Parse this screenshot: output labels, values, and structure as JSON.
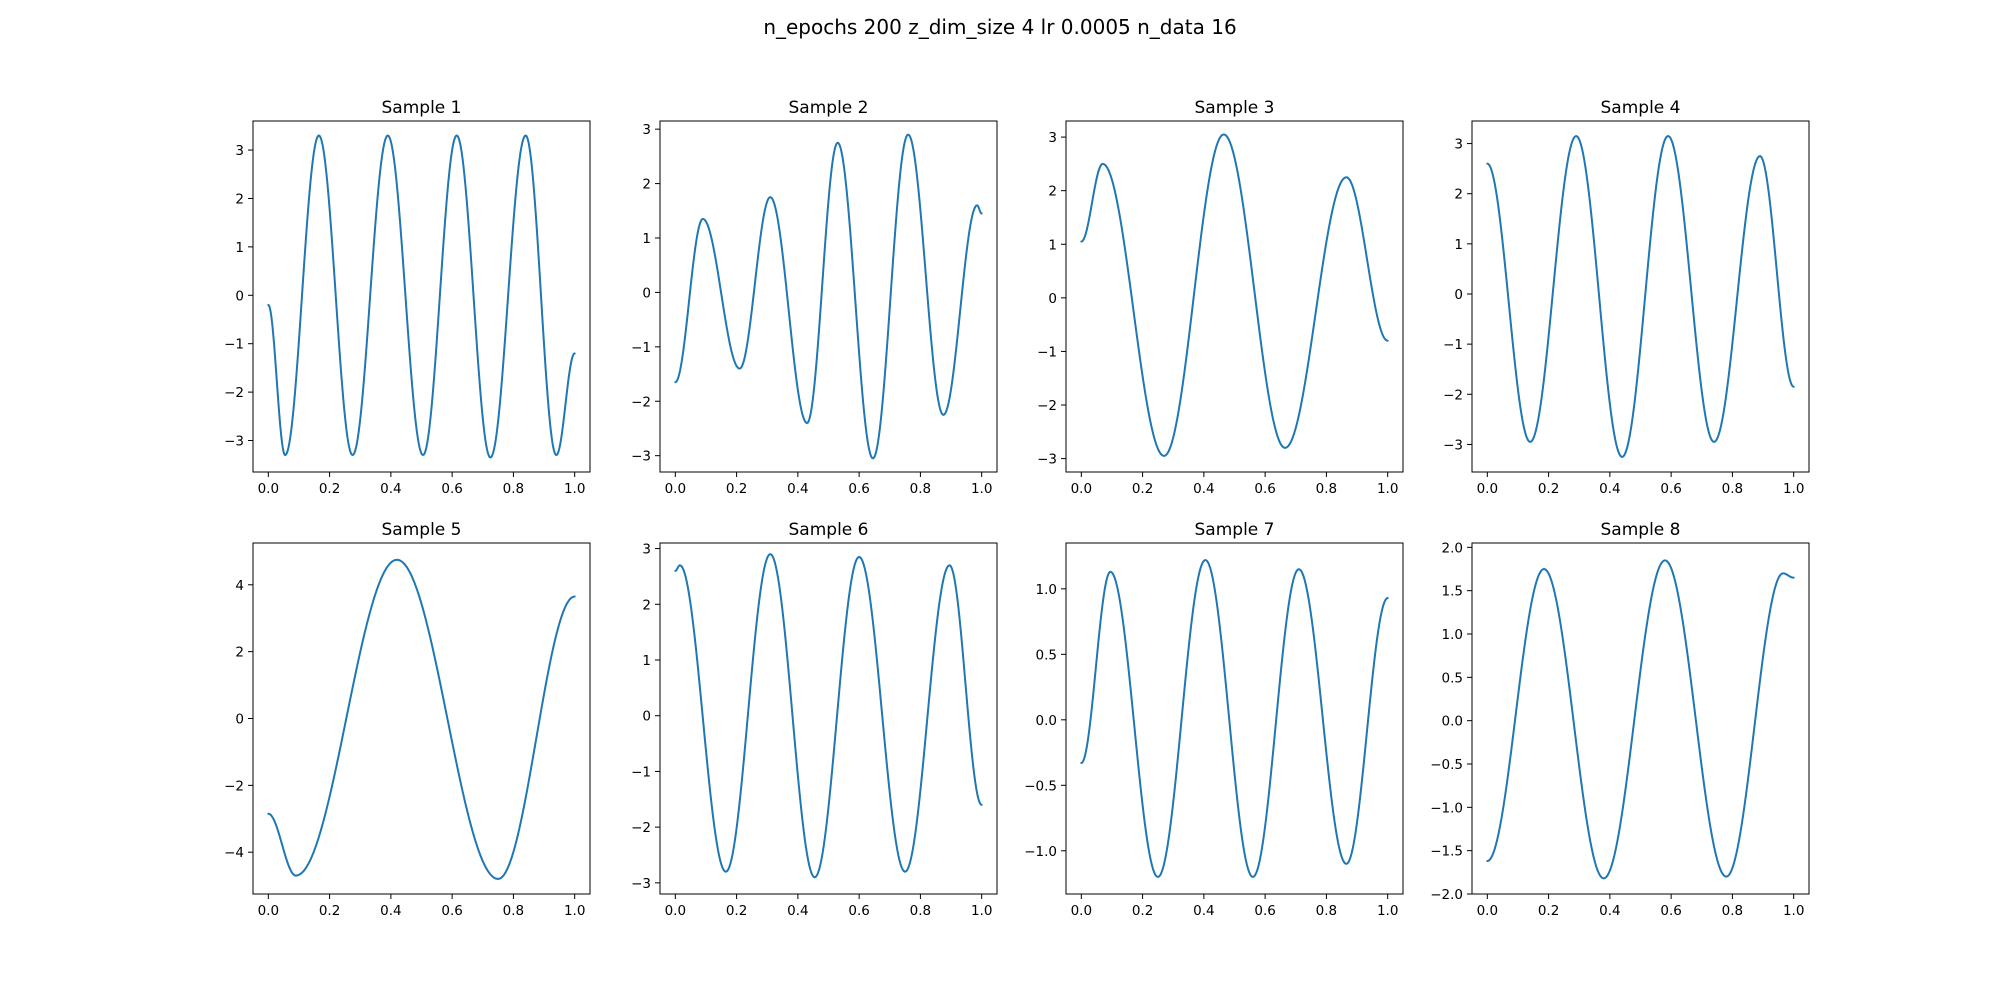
{
  "figure": {
    "title": "n_epochs 200 z_dim_size 4 lr 0.0005 n_data 16",
    "line_color": "#1f77b4",
    "background": "#ffffff"
  },
  "chart_data": [
    {
      "type": "line",
      "title": "Sample 1",
      "xlabel": "",
      "ylabel": "",
      "xlim": [
        -0.05,
        1.05
      ],
      "ylim": [
        -3.65,
        3.6
      ],
      "xticks": [
        "0.0",
        "0.2",
        "0.4",
        "0.6",
        "0.8",
        "1.0"
      ],
      "yticks": [
        "−3",
        "−2",
        "−1",
        "0",
        "1",
        "2",
        "3"
      ],
      "grid": false,
      "series": [
        {
          "x": [
            0.0,
            0.055,
            0.165,
            0.275,
            0.39,
            0.505,
            0.615,
            0.725,
            0.84,
            0.94,
            1.0
          ],
          "y": [
            -0.2,
            -3.3,
            3.3,
            -3.3,
            3.3,
            -3.3,
            3.3,
            -3.35,
            3.3,
            -3.3,
            -1.2
          ]
        }
      ]
    },
    {
      "type": "line",
      "title": "Sample 2",
      "xlabel": "",
      "ylabel": "",
      "xlim": [
        -0.05,
        1.05
      ],
      "ylim": [
        -3.3,
        3.15
      ],
      "xticks": [
        "0.0",
        "0.2",
        "0.4",
        "0.6",
        "0.8",
        "1.0"
      ],
      "yticks": [
        "−3",
        "−2",
        "−1",
        "0",
        "1",
        "2",
        "3"
      ],
      "grid": false,
      "series": [
        {
          "x": [
            0.0,
            0.09,
            0.21,
            0.31,
            0.43,
            0.53,
            0.645,
            0.76,
            0.875,
            0.985,
            1.0
          ],
          "y": [
            -1.65,
            1.35,
            -1.4,
            1.75,
            -2.4,
            2.75,
            -3.05,
            2.9,
            -2.25,
            1.6,
            1.45
          ]
        }
      ]
    },
    {
      "type": "line",
      "title": "Sample 3",
      "xlabel": "",
      "ylabel": "",
      "xlim": [
        -0.05,
        1.05
      ],
      "ylim": [
        -3.25,
        3.3
      ],
      "xticks": [
        "0.0",
        "0.2",
        "0.4",
        "0.6",
        "0.8",
        "1.0"
      ],
      "yticks": [
        "−3",
        "−2",
        "−1",
        "0",
        "1",
        "2",
        "3"
      ],
      "grid": false,
      "series": [
        {
          "x": [
            0.0,
            0.07,
            0.27,
            0.465,
            0.665,
            0.865,
            1.0
          ],
          "y": [
            1.05,
            2.5,
            -2.95,
            3.05,
            -2.8,
            2.25,
            -0.8
          ]
        }
      ]
    },
    {
      "type": "line",
      "title": "Sample 4",
      "xlabel": "",
      "ylabel": "",
      "xlim": [
        -0.05,
        1.05
      ],
      "ylim": [
        -3.55,
        3.45
      ],
      "xticks": [
        "0.0",
        "0.2",
        "0.4",
        "0.6",
        "0.8",
        "1.0"
      ],
      "yticks": [
        "−3",
        "−2",
        "−1",
        "0",
        "1",
        "2",
        "3"
      ],
      "grid": false,
      "series": [
        {
          "x": [
            0.0,
            0.14,
            0.29,
            0.44,
            0.59,
            0.74,
            0.89,
            1.0
          ],
          "y": [
            2.6,
            -2.95,
            3.15,
            -3.25,
            3.15,
            -2.95,
            2.75,
            -1.85
          ]
        }
      ]
    },
    {
      "type": "line",
      "title": "Sample 5",
      "xlabel": "",
      "ylabel": "",
      "xlim": [
        -0.05,
        1.05
      ],
      "ylim": [
        -5.25,
        5.25
      ],
      "xticks": [
        "0.0",
        "0.2",
        "0.4",
        "0.6",
        "0.8",
        "1.0"
      ],
      "yticks": [
        "−4",
        "−2",
        "0",
        "2",
        "4"
      ],
      "grid": false,
      "series": [
        {
          "x": [
            0.0,
            0.09,
            0.42,
            0.75,
            1.0
          ],
          "y": [
            -2.85,
            -4.7,
            4.75,
            -4.8,
            3.65
          ]
        }
      ]
    },
    {
      "type": "line",
      "title": "Sample 6",
      "xlabel": "",
      "ylabel": "",
      "xlim": [
        -0.05,
        1.05
      ],
      "ylim": [
        -3.2,
        3.1
      ],
      "xticks": [
        "0.0",
        "0.2",
        "0.4",
        "0.6",
        "0.8",
        "1.0"
      ],
      "yticks": [
        "−3",
        "−2",
        "−1",
        "0",
        "1",
        "2",
        "3"
      ],
      "grid": false,
      "series": [
        {
          "x": [
            0.0,
            0.015,
            0.165,
            0.31,
            0.455,
            0.6,
            0.75,
            0.895,
            1.0
          ],
          "y": [
            2.6,
            2.7,
            -2.8,
            2.9,
            -2.9,
            2.85,
            -2.8,
            2.7,
            -1.6
          ]
        }
      ]
    },
    {
      "type": "line",
      "title": "Sample 7",
      "xlabel": "",
      "ylabel": "",
      "xlim": [
        -0.05,
        1.05
      ],
      "ylim": [
        -1.33,
        1.35
      ],
      "xticks": [
        "0.0",
        "0.2",
        "0.4",
        "0.6",
        "0.8",
        "1.0"
      ],
      "yticks": [
        "−1.0",
        "−0.5",
        "0.0",
        "0.5",
        "1.0"
      ],
      "grid": false,
      "series": [
        {
          "x": [
            0.0,
            0.095,
            0.25,
            0.405,
            0.56,
            0.71,
            0.865,
            1.0
          ],
          "y": [
            -0.33,
            1.13,
            -1.2,
            1.22,
            -1.2,
            1.15,
            -1.1,
            0.93
          ]
        }
      ]
    },
    {
      "type": "line",
      "title": "Sample 8",
      "xlabel": "",
      "ylabel": "",
      "xlim": [
        -0.05,
        1.05
      ],
      "ylim": [
        -2.0,
        2.05
      ],
      "xticks": [
        "0.0",
        "0.2",
        "0.4",
        "0.6",
        "0.8",
        "1.0"
      ],
      "yticks": [
        "−2.0",
        "−1.5",
        "−1.0",
        "−0.5",
        "0.0",
        "0.5",
        "1.0",
        "1.5",
        "2.0"
      ],
      "grid": false,
      "series": [
        {
          "x": [
            0.0,
            0.185,
            0.38,
            0.58,
            0.78,
            0.965,
            1.0
          ],
          "y": [
            -1.62,
            1.75,
            -1.82,
            1.85,
            -1.8,
            1.7,
            1.65
          ]
        }
      ]
    }
  ]
}
